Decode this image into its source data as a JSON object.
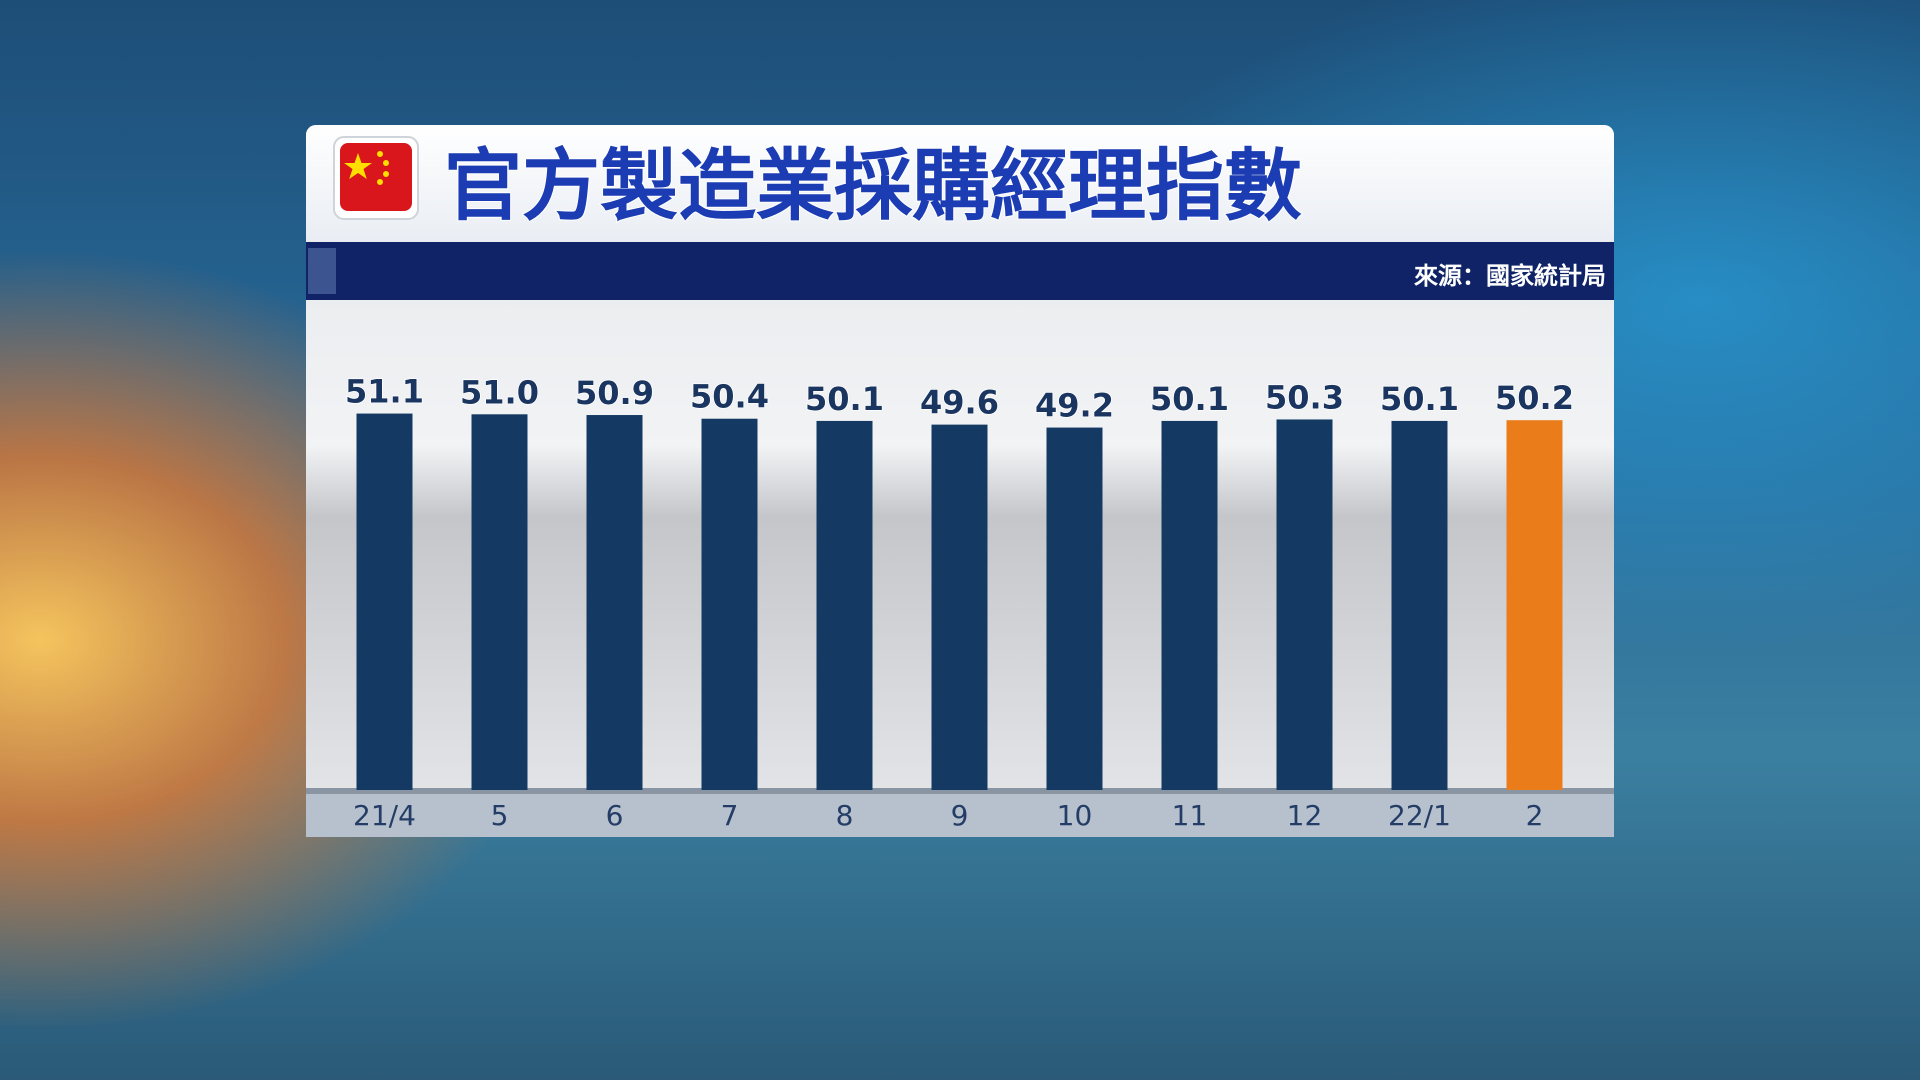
{
  "chart_data": {
    "type": "bar",
    "title": "官方製造業採購經理指數",
    "source": "來源：國家統計局",
    "categories": [
      "21/4",
      "5",
      "6",
      "7",
      "8",
      "9",
      "10",
      "11",
      "12",
      "22/1",
      "2"
    ],
    "values": [
      51.1,
      51.0,
      50.9,
      50.4,
      50.1,
      49.6,
      49.2,
      50.1,
      50.3,
      50.1,
      50.2
    ],
    "value_labels": [
      "51.1",
      "51.0",
      "50.9",
      "50.4",
      "50.1",
      "49.6",
      "49.2",
      "50.1",
      "50.3",
      "50.1",
      "50.2"
    ],
    "colors": [
      "#143a63",
      "#143a63",
      "#143a63",
      "#143a63",
      "#143a63",
      "#143a63",
      "#143a63",
      "#143a63",
      "#143a63",
      "#143a63",
      "#ea7d1a"
    ],
    "ylim": [
      0,
      60
    ]
  }
}
